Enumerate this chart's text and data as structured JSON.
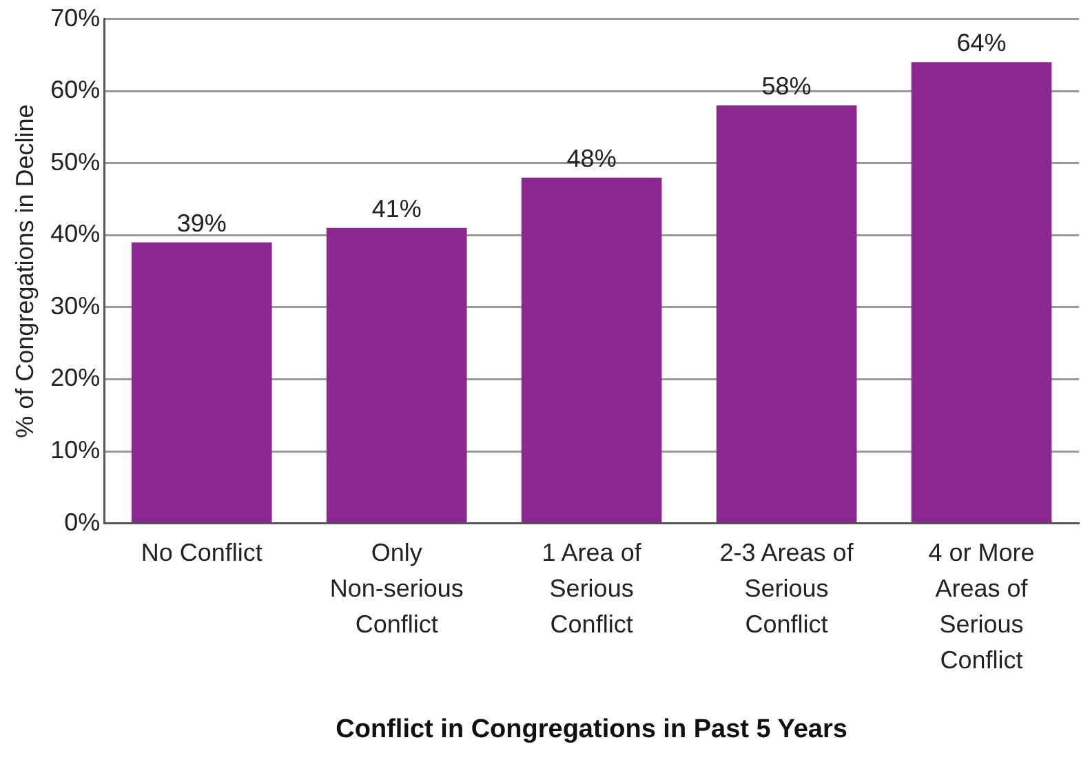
{
  "chart_data": {
    "type": "bar",
    "xlabel": "Conflict in Congregations in Past 5 Years",
    "ylabel": "% of Congregations in Decline",
    "categories": [
      "No Conflict",
      "Only Non-serious Conflict",
      "1 Area of Serious Conflict",
      "2-3 Areas of Serious Conflict",
      "4 or More Areas of Serious Conflict"
    ],
    "values": [
      39,
      41,
      48,
      58,
      64
    ],
    "value_labels": [
      "39%",
      "41%",
      "48%",
      "58%",
      "64%"
    ],
    "color": "#8b288f",
    "ylim": [
      0,
      70
    ],
    "yticks": [
      {
        "value": 0,
        "label": "0%"
      },
      {
        "value": 10,
        "label": "10%"
      },
      {
        "value": 20,
        "label": "20%"
      },
      {
        "value": 30,
        "label": "30%"
      },
      {
        "value": 40,
        "label": "40%"
      },
      {
        "value": 50,
        "label": "50%"
      },
      {
        "value": 60,
        "label": "60%"
      },
      {
        "value": 70,
        "label": "70%"
      }
    ],
    "grid": "y"
  }
}
